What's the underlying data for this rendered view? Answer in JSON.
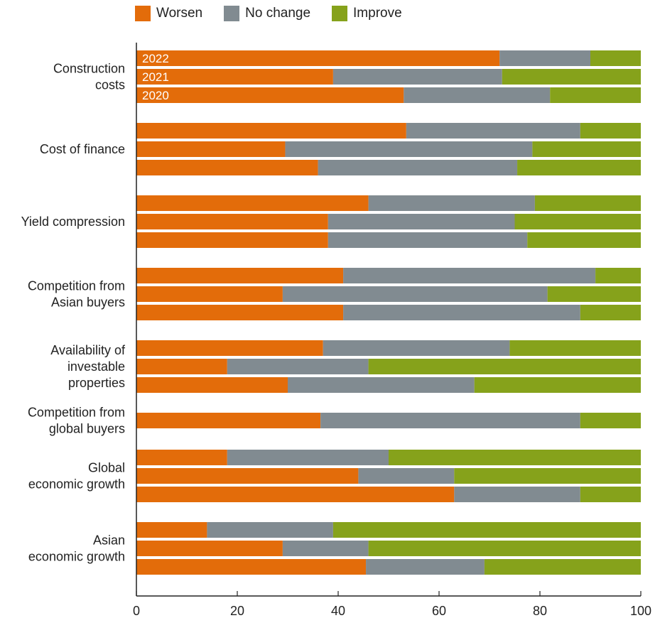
{
  "chart_data": {
    "type": "bar",
    "orientation": "horizontal",
    "stacked": true,
    "legend": {
      "placement": "top-left",
      "entries": [
        {
          "label": "Worsen",
          "color": "#E36C0A"
        },
        {
          "label": "No change",
          "color": "#818B91"
        },
        {
          "label": "Improve",
          "color": "#86A21B"
        }
      ]
    },
    "xlim": [
      0,
      100
    ],
    "xticks": [
      0,
      20,
      40,
      60,
      80,
      100
    ],
    "bar_year_labels": [
      "2022",
      "2021",
      "2020"
    ],
    "categories": [
      {
        "label": [
          "Construction",
          "costs"
        ],
        "bars": [
          {
            "year": "2022",
            "worsen": 72,
            "no_change": 18,
            "improve": 10
          },
          {
            "year": "2021",
            "worsen": 39,
            "no_change": 33.5,
            "improve": 27.5
          },
          {
            "year": "2020",
            "worsen": 53,
            "no_change": 29,
            "improve": 18
          }
        ]
      },
      {
        "label": [
          "Cost of finance"
        ],
        "bars": [
          {
            "year": "2022",
            "worsen": 53.5,
            "no_change": 34.5,
            "improve": 12
          },
          {
            "year": "2021",
            "worsen": 29.5,
            "no_change": 49,
            "improve": 21.5
          },
          {
            "year": "2020",
            "worsen": 36,
            "no_change": 39.5,
            "improve": 24.5
          }
        ]
      },
      {
        "label": [
          "Yield compression"
        ],
        "bars": [
          {
            "year": "2022",
            "worsen": 46,
            "no_change": 33,
            "improve": 21
          },
          {
            "year": "2021",
            "worsen": 38,
            "no_change": 37,
            "improve": 25
          },
          {
            "year": "2020",
            "worsen": 38,
            "no_change": 39.5,
            "improve": 22.5
          }
        ]
      },
      {
        "label": [
          "Competition from",
          "Asian buyers"
        ],
        "bars": [
          {
            "year": "2022",
            "worsen": 41,
            "no_change": 50,
            "improve": 9
          },
          {
            "year": "2021",
            "worsen": 29,
            "no_change": 52.5,
            "improve": 18.5
          },
          {
            "year": "2020",
            "worsen": 41,
            "no_change": 47,
            "improve": 12
          }
        ]
      },
      {
        "label": [
          "Availability of",
          "investable",
          "properties"
        ],
        "bars": [
          {
            "year": "2022",
            "worsen": 37,
            "no_change": 37,
            "improve": 26
          },
          {
            "year": "2021",
            "worsen": 18,
            "no_change": 28,
            "improve": 54
          },
          {
            "year": "2020",
            "worsen": 30,
            "no_change": 37,
            "improve": 33
          }
        ]
      },
      {
        "label": [
          "Competition from",
          "global buyers"
        ],
        "bars": [
          {
            "year": "2022",
            "worsen": 36.5,
            "no_change": 51.5,
            "improve": 12
          }
        ]
      },
      {
        "label": [
          "Global",
          "economic growth"
        ],
        "bars": [
          {
            "year": "2022",
            "worsen": 18,
            "no_change": 32,
            "improve": 50
          },
          {
            "year": "2021",
            "worsen": 44,
            "no_change": 19,
            "improve": 37
          },
          {
            "year": "2020",
            "worsen": 63,
            "no_change": 25,
            "improve": 12
          }
        ]
      },
      {
        "label": [
          "Asian",
          "economic growth"
        ],
        "bars": [
          {
            "year": "2022",
            "worsen": 14,
            "no_change": 25,
            "improve": 61
          },
          {
            "year": "2021",
            "worsen": 29,
            "no_change": 17,
            "improve": 54
          },
          {
            "year": "2020",
            "worsen": 45.5,
            "no_change": 23.5,
            "improve": 31
          }
        ]
      }
    ]
  }
}
